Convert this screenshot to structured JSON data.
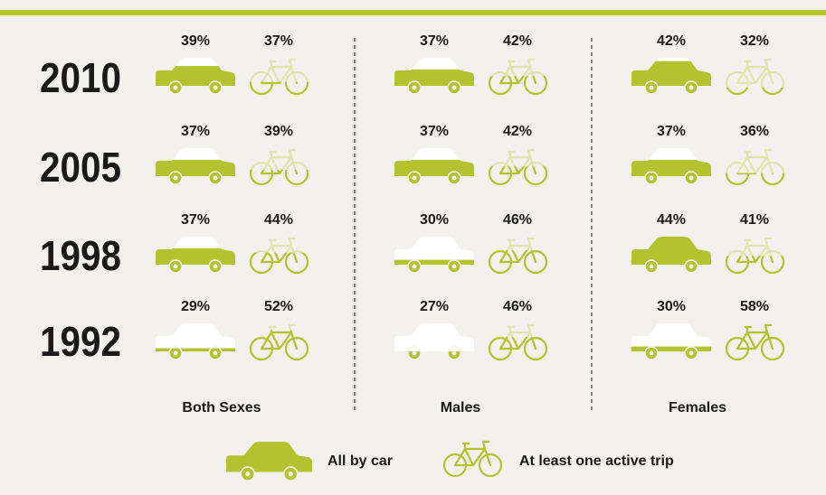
{
  "chart_data": {
    "type": "pictogram",
    "categories": [
      "2010",
      "2005",
      "1998",
      "1992"
    ],
    "series": [
      {
        "name": "All by car",
        "color": "#b3c22e",
        "empty_color": "#ffffff"
      },
      {
        "name": "At least one active trip",
        "color": "#b3c22e",
        "empty_color": "#dfe4b0"
      }
    ],
    "panels": [
      {
        "name": "Both Sexes",
        "values": [
          [
            39,
            37,
            37,
            29
          ],
          [
            37,
            39,
            44,
            52
          ]
        ],
        "value_labels": [
          [
            "39%",
            "37%",
            "37%",
            "29%"
          ],
          [
            "37%",
            "39%",
            "44%",
            "52%"
          ]
        ]
      },
      {
        "name": "Males",
        "values": [
          [
            37,
            37,
            30,
            27
          ],
          [
            42,
            42,
            46,
            46
          ]
        ],
        "value_labels": [
          [
            "37%",
            "37%",
            "30%",
            "27%"
          ],
          [
            "42%",
            "42%",
            "46%",
            "46%"
          ]
        ]
      },
      {
        "name": "Females",
        "values": [
          [
            42,
            37,
            44,
            30
          ],
          [
            32,
            36,
            41,
            58
          ]
        ],
        "value_labels": [
          [
            "42%",
            "37%",
            "44%",
            "30%"
          ],
          [
            "32%",
            "36%",
            "41%",
            "58%"
          ]
        ]
      }
    ]
  }
}
